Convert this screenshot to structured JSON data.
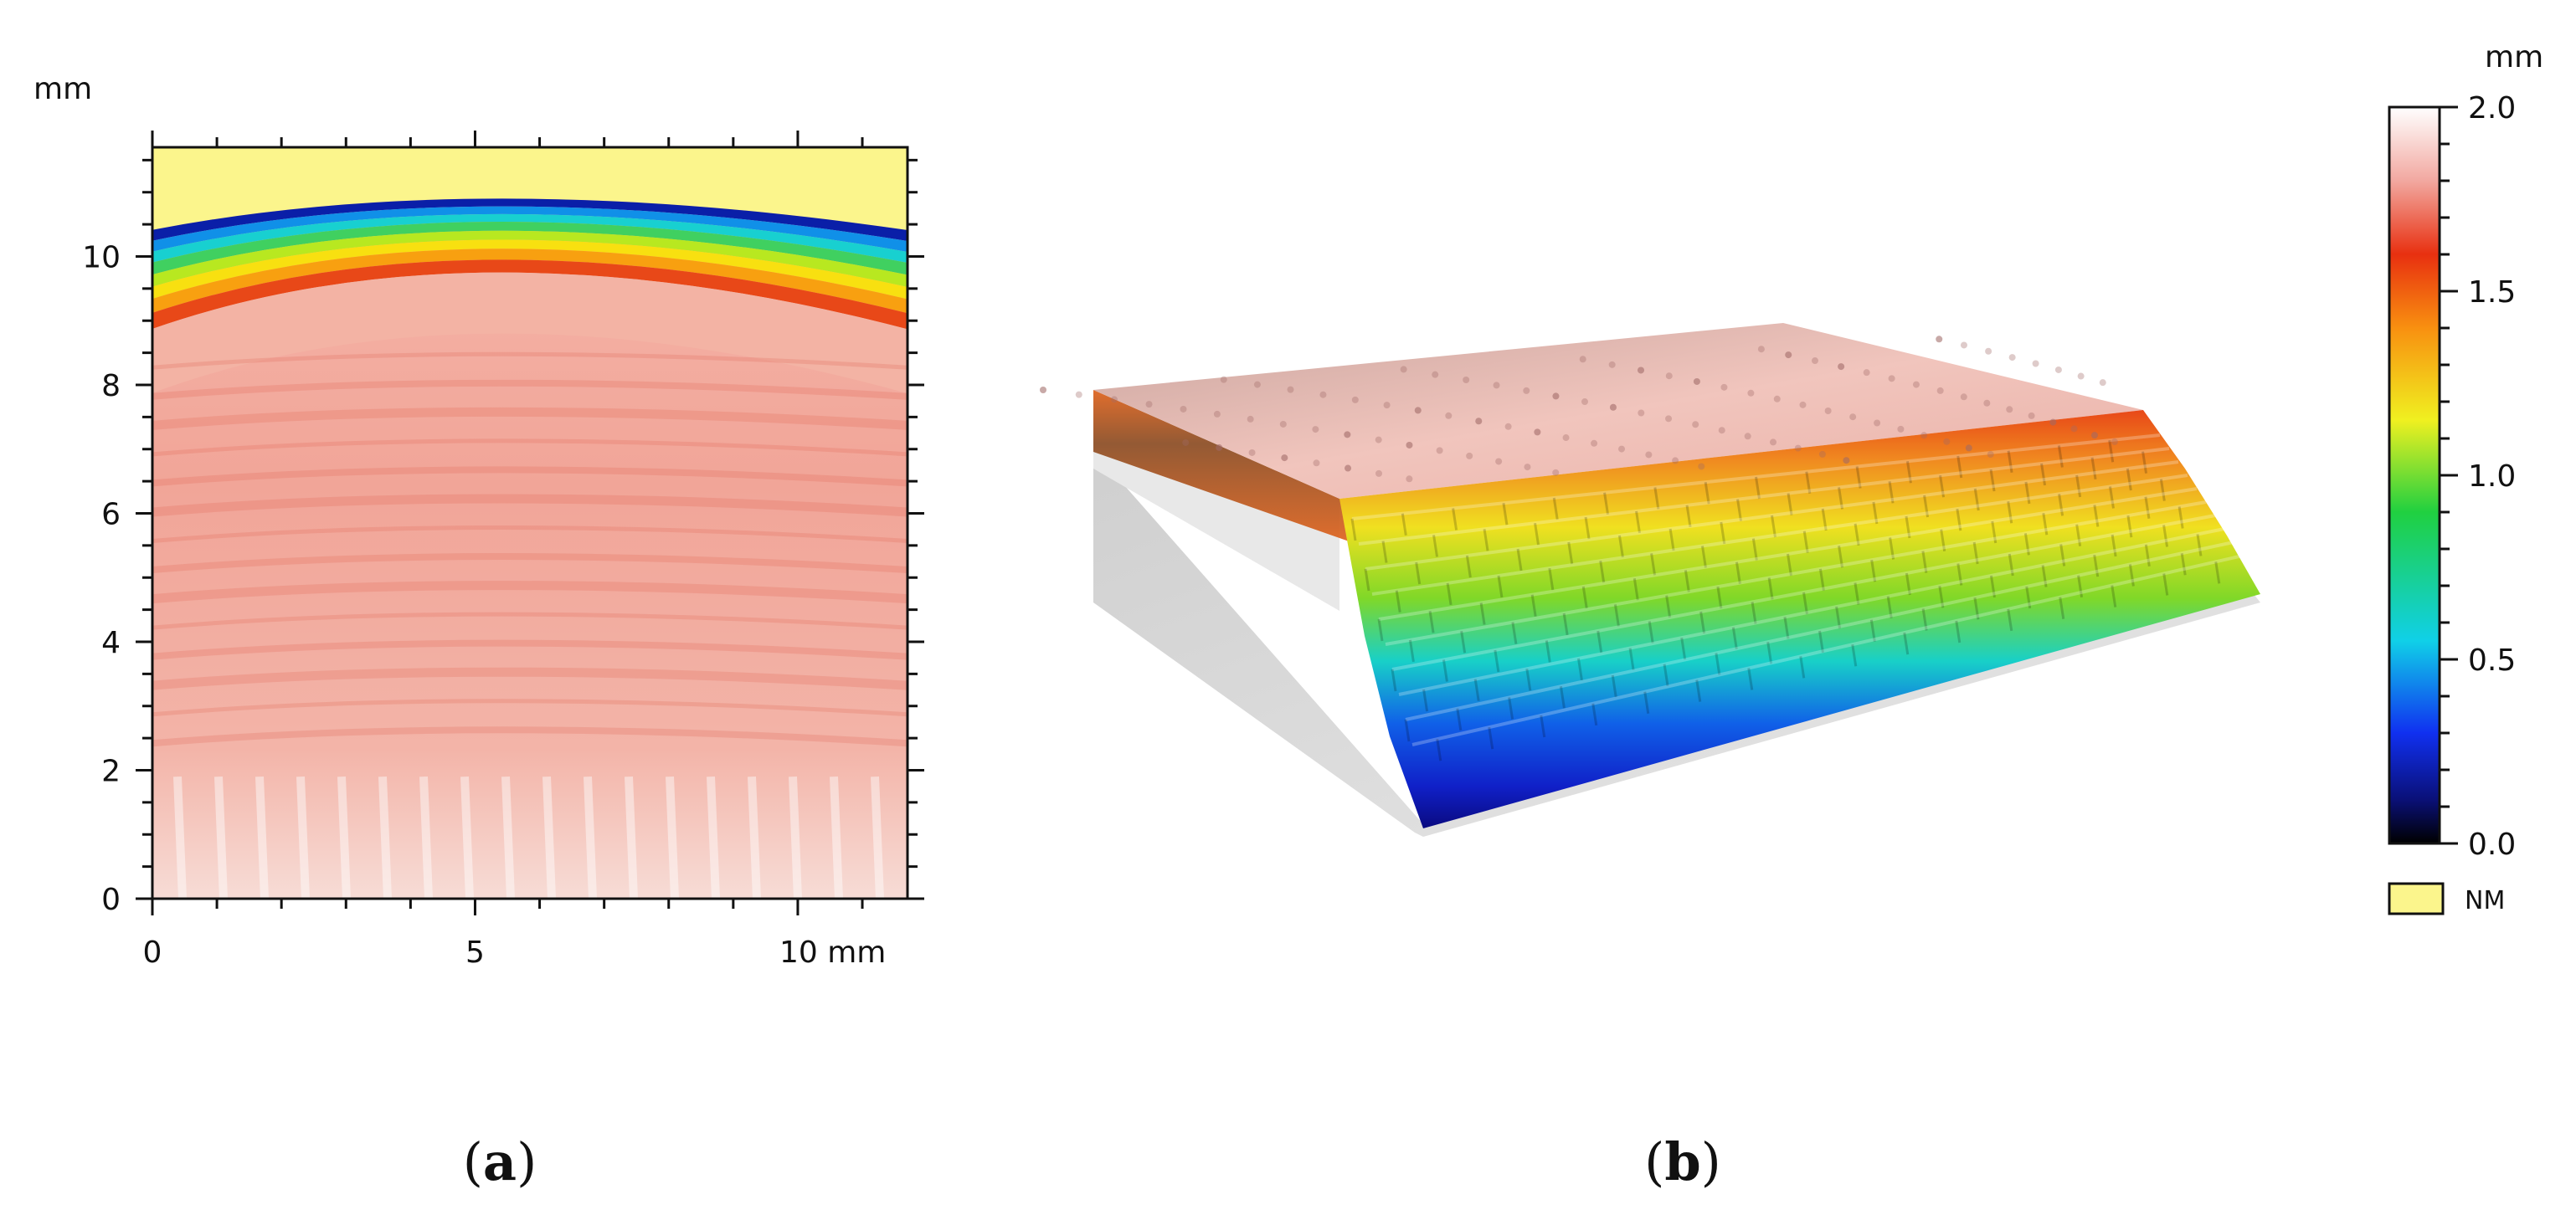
{
  "chart_data": [
    {
      "panel": "a",
      "type": "heatmap",
      "x": {
        "unit": "mm",
        "range": [
          0,
          11.7
        ],
        "ticks": [
          0,
          5,
          10
        ],
        "tick_labels": [
          "0",
          "5",
          "10 mm"
        ]
      },
      "y": {
        "unit": "mm",
        "range": [
          0,
          11.7
        ],
        "ticks": [
          0,
          2,
          4,
          6,
          8,
          10
        ],
        "tick_labels": [
          "0",
          "2",
          "4",
          "6",
          "8",
          "10"
        ]
      },
      "y_unit_label": "mm",
      "not_measured_band": {
        "y_from_edge_center": 10.9,
        "y_from_edge_sides": 10.4,
        "y_to": 11.7
      },
      "color_bands_height_mm": [
        {
          "height_mm": 0.1,
          "color": "#0a1fa8"
        },
        {
          "height_mm": 0.3,
          "color": "#1090e8"
        },
        {
          "height_mm": 0.5,
          "color": "#18d0d0"
        },
        {
          "height_mm": 0.7,
          "color": "#40d060"
        },
        {
          "height_mm": 0.9,
          "color": "#b8e820"
        },
        {
          "height_mm": 1.1,
          "color": "#f8e010"
        },
        {
          "height_mm": 1.3,
          "color": "#f8a010"
        },
        {
          "height_mm": 1.5,
          "color": "#e84818"
        },
        {
          "height_mm": 1.8,
          "color": "#f3b3a4"
        },
        {
          "height_mm": 2.0,
          "color": "#f6dcd6"
        }
      ],
      "panel_label": {
        "open": "(",
        "letter": "a",
        "close": ")"
      }
    },
    {
      "panel": "b",
      "type": "surface-3d",
      "surface_color_scale": "same as colorbar",
      "panel_label": {
        "open": "(",
        "letter": "b",
        "close": ")"
      }
    }
  ],
  "colorbar": {
    "unit": "mm",
    "range": [
      0,
      2.0
    ],
    "ticks": [
      0.0,
      0.5,
      1.0,
      1.5,
      2.0
    ],
    "tick_labels": [
      "0.0",
      "0.5",
      "1.0",
      "1.5",
      "2.0"
    ],
    "stops": [
      {
        "value": 0.0,
        "color": "#000000"
      },
      {
        "value": 0.12,
        "color": "#0a1078"
      },
      {
        "value": 0.3,
        "color": "#1030f0"
      },
      {
        "value": 0.55,
        "color": "#10d0e8"
      },
      {
        "value": 0.9,
        "color": "#20d040"
      },
      {
        "value": 1.15,
        "color": "#f0f020"
      },
      {
        "value": 1.4,
        "color": "#f89010"
      },
      {
        "value": 1.6,
        "color": "#e83010"
      },
      {
        "value": 1.8,
        "color": "#f2a8a0"
      },
      {
        "value": 2.0,
        "color": "#ffffff"
      }
    ]
  },
  "legend": {
    "swatch_color": "#fbf58c",
    "label": "NM"
  },
  "colors": {
    "nm": "#fbf58c",
    "surface_top": "#f4c8c0",
    "wall": "#d8d8d8"
  }
}
